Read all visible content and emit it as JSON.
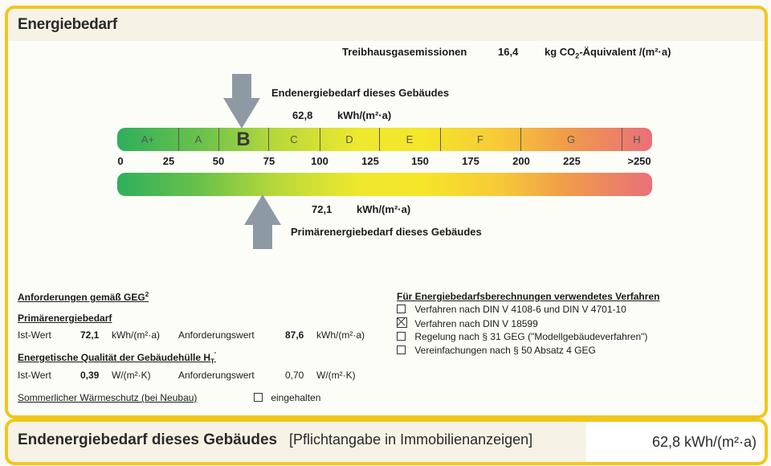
{
  "header": {
    "title": "Energiebedarf"
  },
  "emissions": {
    "label": "Treibhausgasemissionen",
    "value": "16,4",
    "unit_prefix": "kg CO",
    "unit_sub": "2",
    "unit_suffix": "-Äquivalent /(m²·a)"
  },
  "end_energy": {
    "label": "Endenergiebedarf dieses Gebäudes",
    "value": "62,8",
    "unit": "kWh/(m²·a)",
    "scale_value": 62.8
  },
  "primary_energy": {
    "label": "Primärenergiebedarf dieses Gebäudes",
    "value": "72,1",
    "unit": "kWh/(m²·a)",
    "scale_value": 72.1
  },
  "scale": {
    "classes": [
      "A+",
      "A",
      "B",
      "C",
      "D",
      "E",
      "F",
      "G",
      "H"
    ],
    "active_class": "B",
    "ticks": [
      "0",
      "25",
      "50",
      "75",
      "100",
      "125",
      "150",
      "175",
      "200",
      "225",
      ">250"
    ]
  },
  "requirements": {
    "heading": "Anforderungen gemäß GEG",
    "heading_sup": "2",
    "primary": {
      "heading": "Primärenergiebedarf",
      "ist_label": "Ist-Wert",
      "ist_value": "72,1",
      "ist_unit": "kWh/(m²·a)",
      "req_label": "Anforderungswert",
      "req_value": "87,6",
      "req_unit": "kWh/(m²·a)"
    },
    "envelope": {
      "heading": "Energetische Qualität der Gebäudehülle H",
      "heading_sub": "T",
      "heading_sup": "'",
      "ist_label": "Ist-Wert",
      "ist_value": "0,39",
      "ist_unit": "W/(m²·K)",
      "req_label": "Anforderungswert",
      "req_value": "0,70",
      "req_unit": "W/(m²·K)"
    },
    "summer": {
      "label": "Sommerlicher Wärmeschutz (bei Neubau)",
      "checkbox_label": "eingehalten",
      "checked": false
    }
  },
  "methods": {
    "heading": "Für Energiebedarfsberechnungen verwendetes Verfahren",
    "items": [
      {
        "label": "Verfahren nach DIN V 4108-6 und DIN V 4701-10",
        "checked": false
      },
      {
        "label": "Verfahren nach DIN V 18599",
        "checked": true
      },
      {
        "label": "Regelung nach § 31 GEG (\"Modellgebäudeverfahren\")",
        "checked": false
      },
      {
        "label": "Vereinfachungen nach § 50 Absatz 4 GEG",
        "checked": false
      }
    ]
  },
  "footer": {
    "title": "Endenergiebedarf dieses Gebäudes",
    "note": "[Pflichtangabe in Immobilienanzeigen]",
    "value": "62,8 kWh/(m²·a)"
  },
  "colors": {
    "frame": "#f2c61c",
    "arrow": "#8e9aa3",
    "scale_green": "#2eaf5c",
    "scale_yellow": "#f5e62a",
    "scale_red": "#e9707a"
  }
}
